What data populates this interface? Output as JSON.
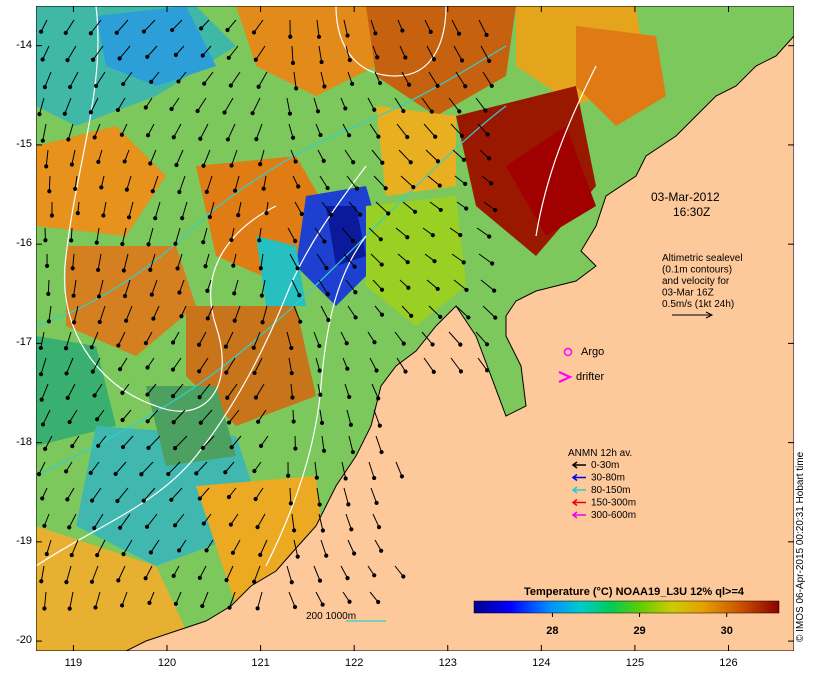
{
  "map": {
    "lon_range": [
      118.6,
      126.7
    ],
    "lat_range": [
      -20.1,
      -13.6
    ],
    "lon_ticks": [
      119,
      120,
      121,
      122,
      123,
      124,
      125,
      126
    ],
    "lat_ticks": [
      -14,
      -15,
      -16,
      -17,
      -18,
      -19,
      -20
    ],
    "lon_tick_labels": [
      "119",
      "120",
      "121",
      "122",
      "123",
      "124",
      "125",
      "126"
    ],
    "lat_tick_labels": [
      "-14",
      "-15",
      "-16",
      "-17",
      "-18",
      "-19",
      "-20"
    ],
    "land_color": "#fdc89a",
    "credit": "© IMOS 06-Apr-2015 00:20:31 Hobart time"
  },
  "annotations": {
    "date": "03-Mar-2012",
    "time": "16:30Z",
    "alt_lines": [
      "Altimetric sealevel",
      "(0.1m contours)",
      "and velocity for",
      "03-Mar 16Z",
      "0.5m/s (1kt 24h)"
    ],
    "argo_label": "Argo",
    "drifter_label": "drifter",
    "depth_contours_label": "200  1000m"
  },
  "legend_anmn": {
    "title": "ANMN 12h av.",
    "items": [
      {
        "label": "0-30m",
        "color": "#000000"
      },
      {
        "label": "30-80m",
        "color": "#0000ee"
      },
      {
        "label": "80-150m",
        "color": "#22cccc"
      },
      {
        "label": "150-300m",
        "color": "#ee0000"
      },
      {
        "label": "300-600m",
        "color": "#ee00ee"
      }
    ]
  },
  "colorbar": {
    "title": "Temperature (°C) NOAA19_L3U 12% ql>=4",
    "range": [
      27.1,
      30.6
    ],
    "ticks": [
      28,
      29,
      30
    ],
    "tick_labels": [
      "28",
      "29",
      "30"
    ],
    "colors": [
      "#00008b",
      "#0000ff",
      "#0080ff",
      "#00cccc",
      "#00cc66",
      "#33cc00",
      "#99cc00",
      "#cccc00",
      "#e6a000",
      "#cc6600",
      "#b33300",
      "#8b0000"
    ]
  }
}
